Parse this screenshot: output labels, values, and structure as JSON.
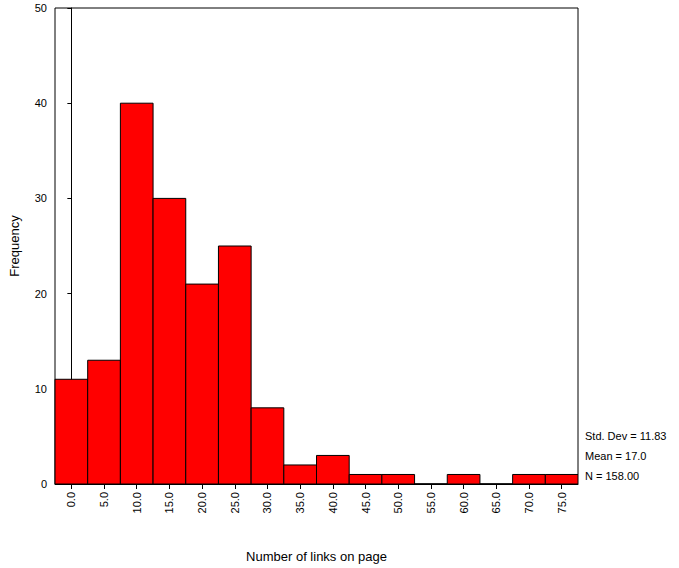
{
  "chart_data": {
    "type": "histogram",
    "x_label": "Number of links on page",
    "y_label": "Frequency",
    "bins": [
      -2.5,
      2.5,
      7.5,
      12.5,
      17.5,
      22.5,
      27.5,
      32.5,
      37.5,
      42.5,
      47.5,
      52.5,
      57.5,
      62.5,
      67.5,
      72.5,
      77.5
    ],
    "values": [
      11,
      13,
      40,
      30,
      21,
      25,
      8,
      2,
      3,
      1,
      1,
      0,
      1,
      0,
      1,
      1
    ],
    "color": "#ff0000",
    "xlim": [
      -2.5,
      77.5
    ],
    "xticks": [
      {
        "value": 0,
        "label": "0.0"
      },
      {
        "value": 5,
        "label": "5.0"
      },
      {
        "value": 10,
        "label": "10.0"
      },
      {
        "value": 15,
        "label": "15.0"
      },
      {
        "value": 20,
        "label": "20.0"
      },
      {
        "value": 25,
        "label": "25.0"
      },
      {
        "value": 30,
        "label": "30.0"
      },
      {
        "value": 35,
        "label": "35.0"
      },
      {
        "value": 40,
        "label": "40.0"
      },
      {
        "value": 45,
        "label": "45.0"
      },
      {
        "value": 50,
        "label": "50.0"
      },
      {
        "value": 55,
        "label": "55.0"
      },
      {
        "value": 60,
        "label": "60.0"
      },
      {
        "value": 65,
        "label": "65.0"
      },
      {
        "value": 70,
        "label": "70.0"
      },
      {
        "value": 75,
        "label": "75.0"
      }
    ],
    "ylim": [
      0,
      50
    ],
    "yticks": [
      0,
      10,
      20,
      30,
      40,
      50
    ],
    "grid": false,
    "annotations": [
      "Std. Dev = 11.83",
      "Mean = 17.0",
      "N = 158.00"
    ]
  }
}
